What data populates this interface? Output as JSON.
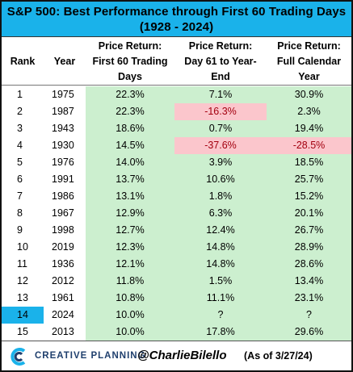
{
  "title": {
    "line1": "S&P 500: Best Performance through First 60 Trading Days",
    "line2": "(1928 - 2024)"
  },
  "headers": {
    "rank": "Rank",
    "year": "Year",
    "col1": [
      "Price Return:",
      "First 60 Trading",
      "Days"
    ],
    "col2": [
      "Price Return:",
      "Day 61 to Year-",
      "End"
    ],
    "col3": [
      "Price Return:",
      "Full Calendar",
      "Year"
    ]
  },
  "colors": {
    "title_bg": "#1ab2ea",
    "positive_bg": "#ccefcf",
    "negative_bg": "#fbc6cc",
    "negative_text": "#a3000f",
    "highlight": "#1ab2ea"
  },
  "chart_data": {
    "type": "table",
    "title": "S&P 500: Best Performance through First 60 Trading Days (1928 - 2024)",
    "columns": [
      "Rank",
      "Year",
      "Price Return: First 60 Trading Days",
      "Price Return: Day 61 to Year-End",
      "Price Return: Full Calendar Year"
    ],
    "rows": [
      {
        "rank": "1",
        "year": "1975",
        "p1": "22.3%",
        "p2": "7.1%",
        "p3": "30.9%"
      },
      {
        "rank": "2",
        "year": "1987",
        "p1": "22.3%",
        "p2": "-16.3%",
        "p3": "2.3%"
      },
      {
        "rank": "3",
        "year": "1943",
        "p1": "18.6%",
        "p2": "0.7%",
        "p3": "19.4%"
      },
      {
        "rank": "4",
        "year": "1930",
        "p1": "14.5%",
        "p2": "-37.6%",
        "p3": "-28.5%"
      },
      {
        "rank": "5",
        "year": "1976",
        "p1": "14.0%",
        "p2": "3.9%",
        "p3": "18.5%"
      },
      {
        "rank": "6",
        "year": "1991",
        "p1": "13.7%",
        "p2": "10.6%",
        "p3": "25.7%"
      },
      {
        "rank": "7",
        "year": "1986",
        "p1": "13.1%",
        "p2": "1.8%",
        "p3": "15.2%"
      },
      {
        "rank": "8",
        "year": "1967",
        "p1": "12.9%",
        "p2": "6.3%",
        "p3": "20.1%"
      },
      {
        "rank": "9",
        "year": "1998",
        "p1": "12.7%",
        "p2": "12.4%",
        "p3": "26.7%"
      },
      {
        "rank": "10",
        "year": "2019",
        "p1": "12.3%",
        "p2": "14.8%",
        "p3": "28.9%"
      },
      {
        "rank": "11",
        "year": "1936",
        "p1": "12.1%",
        "p2": "14.8%",
        "p3": "28.6%"
      },
      {
        "rank": "12",
        "year": "2012",
        "p1": "11.8%",
        "p2": "1.5%",
        "p3": "13.4%"
      },
      {
        "rank": "13",
        "year": "1961",
        "p1": "10.8%",
        "p2": "11.1%",
        "p3": "23.1%"
      },
      {
        "rank": "14",
        "year": "2024",
        "p1": "10.0%",
        "p2": "?",
        "p3": "?",
        "highlight": true
      },
      {
        "rank": "15",
        "year": "2013",
        "p1": "10.0%",
        "p2": "17.8%",
        "p3": "29.6%"
      }
    ]
  },
  "footer": {
    "logo_icon": "creative-planning-c-logo",
    "logo_text": "CREATIVE PLANNING",
    "handle": "@CharlieBilello",
    "as_of": "(As of 3/27/24)"
  }
}
